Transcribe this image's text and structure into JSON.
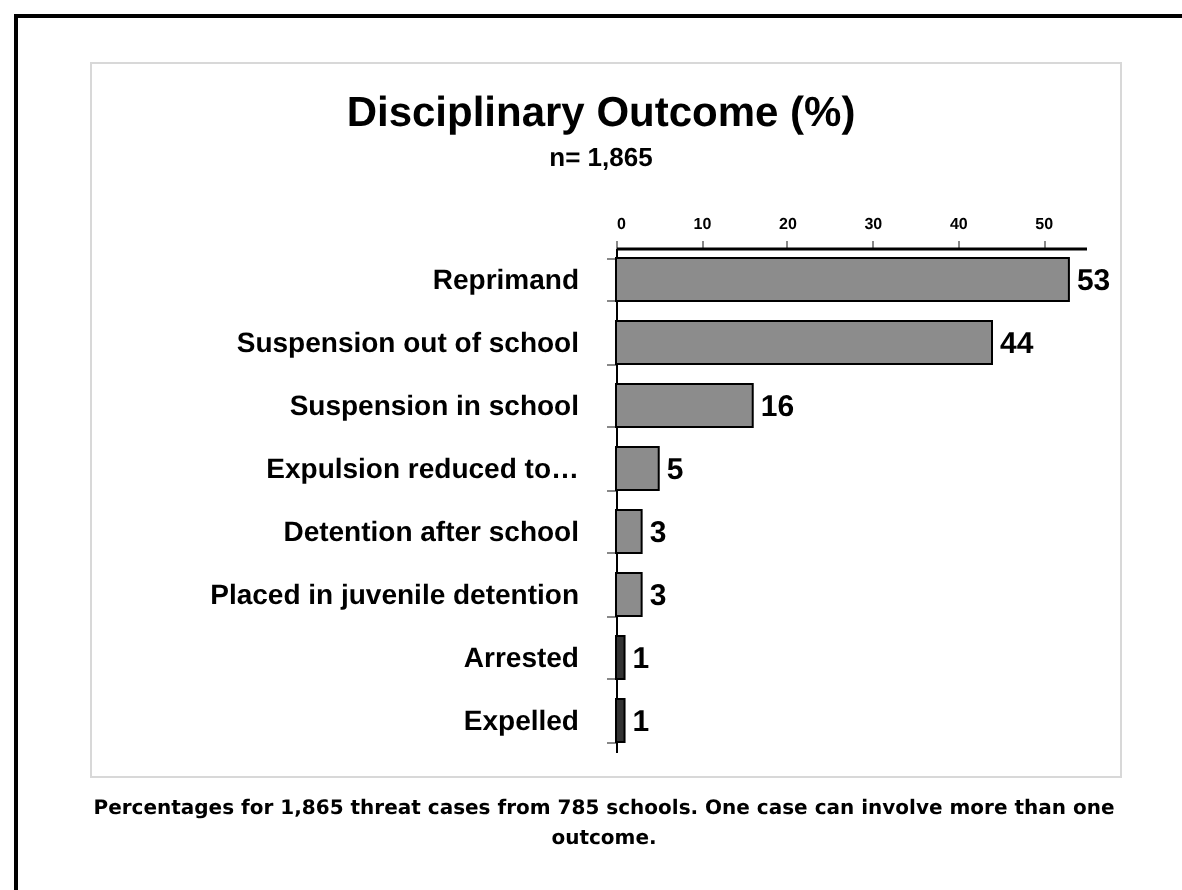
{
  "chart_data": {
    "type": "bar",
    "orientation": "horizontal",
    "title": "Disciplinary Outcome (%)",
    "subtitle": "n= 1,865",
    "categories": [
      "Reprimand",
      "Suspension out of school",
      "Suspension in school ",
      "Expulsion reduced to…",
      "Detention after school",
      "Placed in juvenile detention",
      "Arrested",
      "Expelled"
    ],
    "values": [
      53,
      44,
      16,
      5,
      3,
      3,
      1,
      1
    ],
    "colors": [
      "#8c8c8c",
      "#8c8c8c",
      "#8c8c8c",
      "#8c8c8c",
      "#8c8c8c",
      "#8c8c8c",
      "#333333",
      "#333333"
    ],
    "xlim": [
      0,
      55
    ],
    "xticks": [
      0,
      10,
      20,
      30,
      40,
      50
    ],
    "data_labels": true,
    "grid": false,
    "annotations": [
      "Percentages for 1,865 threat cases from 785 schools. One case can involve more than one outcome."
    ]
  }
}
